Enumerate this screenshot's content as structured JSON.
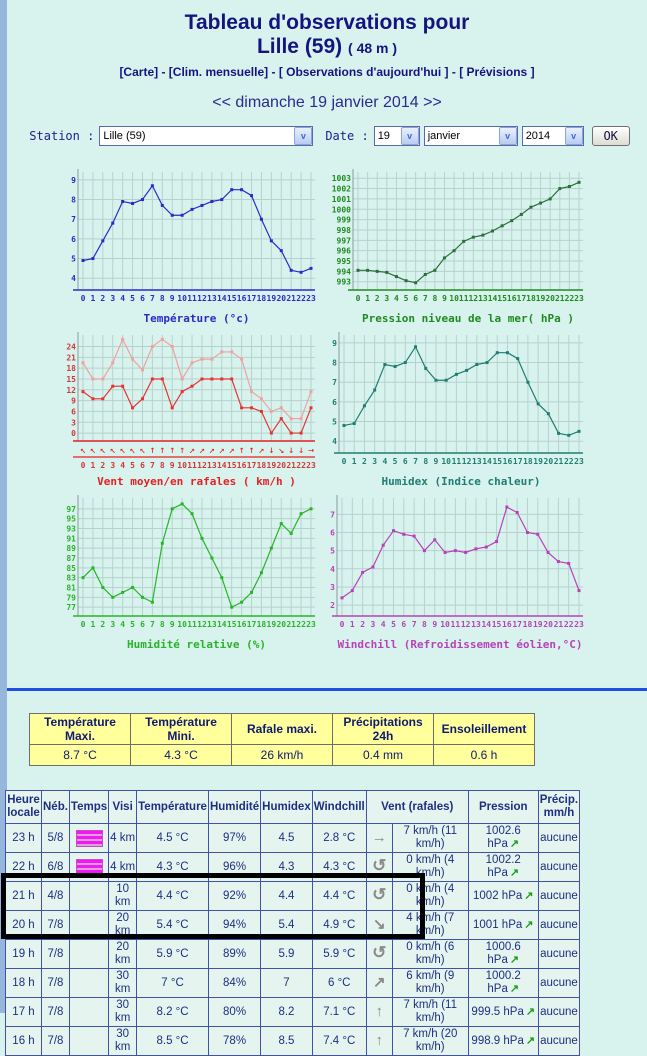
{
  "header": {
    "title_line1": "Tableau d'observations pour",
    "title_line2": "Lille (59)",
    "title_altitude": "( 48 m )",
    "links": [
      "[Carte]",
      "[Clim. mensuelle]",
      "[ Observations d'aujourd'hui ]",
      "[ Prévisions ]"
    ],
    "link_separator": " - ",
    "date_prev": "<<",
    "date_label": "dimanche 19 janvier 2014",
    "date_next": ">>"
  },
  "form": {
    "station_label": "Station :",
    "station_value": "Lille (59)",
    "date_label": "Date :",
    "day_value": "19",
    "month_value": "janvier",
    "year_value": "2014",
    "ok_label": "OK",
    "select_arrow": "v"
  },
  "colors": {
    "page_bg": "#d8f3ee",
    "grid": "#b6d2cd",
    "axis_gray": "#8899a0",
    "divider_blue": "#1e4fe0",
    "summary_bg": "#ffff9c",
    "table_border": "#4052a8",
    "table_text": "#1c2f80",
    "trend_green": "#18a018",
    "mist_magenta": "#f714f7"
  },
  "chart_data": [
    {
      "key": "temperature",
      "type": "line",
      "title": "Température (°c)",
      "color": "#2a2ac8",
      "margin": 20,
      "ymin": 3.4,
      "ymax": 9.4,
      "yticks": [
        4,
        5,
        6,
        7,
        8,
        9
      ],
      "x": [
        0,
        1,
        2,
        3,
        4,
        5,
        6,
        7,
        8,
        9,
        10,
        11,
        12,
        13,
        14,
        15,
        16,
        17,
        18,
        19,
        20,
        21,
        22,
        23
      ],
      "values": [
        4.9,
        5.0,
        5.9,
        6.8,
        7.9,
        7.8,
        8.0,
        8.7,
        7.7,
        7.2,
        7.2,
        7.5,
        7.7,
        7.9,
        8.0,
        8.5,
        8.5,
        8.2,
        7.0,
        5.9,
        5.4,
        4.4,
        4.3,
        4.5
      ]
    },
    {
      "key": "pression",
      "type": "line",
      "title": "Pression niveau de la mer( hPa )",
      "color": "#1f8a1f",
      "line_color": "#2d6e3c",
      "margin": 27,
      "ymin": 992.2,
      "ymax": 1003.6,
      "yticks": [
        993,
        994,
        995,
        996,
        997,
        998,
        999,
        1000,
        1001,
        1002,
        1003
      ],
      "x": [
        0,
        1,
        2,
        3,
        4,
        5,
        6,
        7,
        8,
        9,
        10,
        11,
        12,
        13,
        14,
        15,
        16,
        17,
        18,
        19,
        20,
        21,
        22,
        23
      ],
      "values": [
        994.1,
        994.1,
        994.0,
        993.9,
        993.5,
        993.1,
        992.9,
        993.7,
        994.1,
        995.3,
        996.0,
        996.9,
        997.3,
        997.5,
        997.9,
        998.4,
        998.9,
        999.5,
        1000.2,
        1000.6,
        1001.0,
        1002.0,
        1002.2,
        1002.6
      ]
    },
    {
      "key": "vent",
      "type": "line",
      "title": "Vent moyen/en rafales ( km/h )",
      "color": "#e62020",
      "tick_color": "#d03838",
      "margin": 20,
      "ymin": -2.2,
      "ymax": 27.2,
      "yticks": [
        0,
        3,
        6,
        9,
        12,
        15,
        18,
        21,
        24
      ],
      "x": [
        0,
        1,
        2,
        3,
        4,
        5,
        6,
        7,
        8,
        9,
        10,
        11,
        12,
        13,
        14,
        15,
        16,
        17,
        18,
        19,
        20,
        21,
        22,
        23
      ],
      "series": [
        {
          "name": "rafales",
          "color": "#f2a0a0",
          "values": [
            19.5,
            15,
            15,
            19.5,
            26,
            20.5,
            17.5,
            24,
            26,
            24,
            15,
            19.5,
            20.5,
            20.5,
            22.5,
            22.5,
            20.5,
            11.5,
            9.5,
            6,
            7,
            4,
            4,
            11.5
          ]
        },
        {
          "name": "vent moyen",
          "color": "#e63232",
          "values": [
            11.5,
            9.5,
            9.5,
            13,
            13,
            7,
            9.5,
            15,
            15,
            7,
            11.5,
            13,
            15,
            15,
            15,
            15,
            7,
            7,
            6,
            0,
            4,
            0,
            0,
            7
          ]
        }
      ],
      "arrows": [
        "↖",
        "↖",
        "↖",
        "↖",
        "↖",
        "↖",
        "↖",
        "↑",
        "↑",
        "↑",
        "↑",
        "↗",
        "↗",
        "↗",
        "↗",
        "↗",
        "↑",
        "↑",
        "↗",
        "↓",
        "↘",
        "↓",
        "↓",
        "→"
      ]
    },
    {
      "key": "humidex",
      "type": "line",
      "title": "Humidex (Indice chaleur)",
      "color": "#1f7d72",
      "margin": 13,
      "ymin": 3.4,
      "ymax": 9.4,
      "yticks": [
        4,
        5,
        6,
        7,
        8,
        9
      ],
      "x": [
        0,
        1,
        2,
        3,
        4,
        5,
        6,
        7,
        8,
        9,
        10,
        11,
        12,
        13,
        14,
        15,
        16,
        17,
        18,
        19,
        20,
        21,
        22,
        23
      ],
      "values": [
        4.8,
        4.9,
        5.8,
        6.6,
        7.9,
        7.8,
        8.0,
        8.8,
        7.7,
        7.1,
        7.1,
        7.4,
        7.6,
        7.9,
        8.0,
        8.5,
        8.5,
        8.2,
        7.0,
        5.9,
        5.4,
        4.4,
        4.3,
        4.5
      ]
    },
    {
      "key": "humidite",
      "type": "line",
      "title": "Humidité relative (%)",
      "color": "#28b428",
      "margin": 20,
      "ymin": 75.2,
      "ymax": 99.2,
      "yticks": [
        77,
        79,
        81,
        83,
        85,
        87,
        89,
        91,
        93,
        95,
        97
      ],
      "x": [
        0,
        1,
        2,
        3,
        4,
        5,
        6,
        7,
        8,
        9,
        10,
        11,
        12,
        13,
        14,
        15,
        16,
        17,
        18,
        19,
        20,
        21,
        22,
        23
      ],
      "values": [
        83,
        85,
        81,
        79,
        80,
        81,
        79,
        78,
        90,
        97,
        98,
        96,
        91,
        87,
        83,
        77,
        78,
        80,
        84,
        89,
        94,
        92,
        96,
        97
      ]
    },
    {
      "key": "windchill",
      "type": "line",
      "title": "Windchill (Refroidissement éolien,°C)",
      "color": "#b841b8",
      "margin": 11,
      "ymin": 1.4,
      "ymax": 7.9,
      "yticks": [
        2,
        3,
        4,
        5,
        6,
        7
      ],
      "x": [
        0,
        1,
        2,
        3,
        4,
        5,
        6,
        7,
        8,
        9,
        10,
        11,
        12,
        13,
        14,
        15,
        16,
        17,
        18,
        19,
        20,
        21,
        22,
        23
      ],
      "values": [
        2.4,
        2.8,
        3.8,
        4.1,
        5.3,
        6.1,
        5.9,
        5.8,
        5.0,
        5.6,
        4.9,
        5.0,
        4.9,
        5.1,
        5.2,
        5.5,
        7.4,
        7.1,
        6.0,
        5.9,
        4.9,
        4.4,
        4.3,
        2.8
      ]
    }
  ],
  "summary": {
    "columns": [
      {
        "label": "Température Maxi.",
        "value": "8.7 °C"
      },
      {
        "label": "Température Mini.",
        "value": "4.3 °C"
      },
      {
        "label": "Rafale maxi.",
        "value": "26 km/h"
      },
      {
        "label": "Précipitations 24h",
        "value": "0.4 mm"
      },
      {
        "label": "Ensoleillement",
        "value": "0.6 h"
      }
    ]
  },
  "table": {
    "headers": [
      "Heure locale",
      "Néb.",
      "Temps",
      "Visi",
      "Température",
      "Humidité",
      "Humidex",
      "Windchill",
      "Vent (rafales)",
      "Pression",
      "Précip. mm/h"
    ],
    "rows": [
      {
        "heure": "23 h",
        "neb": "5/8",
        "temps_icon": "mist",
        "visi": "4 km",
        "temperature": "4.5 °C",
        "humidite": "97%",
        "humidex": "4.5",
        "windchill": "2.8 °C",
        "vent_dir": "arrow-right-icon",
        "vent_glyph": "→",
        "vent": "7 km/h (11 km/h)",
        "pression": "1002.6 hPa",
        "trend": "↗",
        "precip": "aucune",
        "highlight": false
      },
      {
        "heure": "22 h",
        "neb": "6/8",
        "temps_icon": "mist",
        "visi": "4 km",
        "temperature": "4.3 °C",
        "humidite": "96%",
        "humidex": "4.3",
        "windchill": "4.3 °C",
        "vent_dir": "wind-variable-icon",
        "vent_glyph": "↺",
        "vent": "0 km/h (4 km/h)",
        "pression": "1002.2 hPa",
        "trend": "↗",
        "precip": "aucune",
        "highlight": false
      },
      {
        "heure": "21 h",
        "neb": "4/8",
        "temps_icon": "",
        "visi": "10 km",
        "temperature": "4.4 °C",
        "humidite": "92%",
        "humidex": "4.4",
        "windchill": "4.4 °C",
        "vent_dir": "wind-variable-icon",
        "vent_glyph": "↺",
        "vent": "0 km/h (4 km/h)",
        "pression": "1002 hPa",
        "trend": "↗",
        "precip": "aucune",
        "highlight": true
      },
      {
        "heure": "20 h",
        "neb": "7/8",
        "temps_icon": "",
        "visi": "20 km",
        "temperature": "5.4 °C",
        "humidite": "94%",
        "humidex": "5.4",
        "windchill": "4.9 °C",
        "vent_dir": "arrow-downright-icon",
        "vent_glyph": "↘",
        "vent": "4 km/h (7 km/h)",
        "pression": "1001 hPa",
        "trend": "↗",
        "precip": "aucune",
        "highlight": true
      },
      {
        "heure": "19 h",
        "neb": "7/8",
        "temps_icon": "",
        "visi": "20 km",
        "temperature": "5.9 °C",
        "humidite": "89%",
        "humidex": "5.9",
        "windchill": "5.9 °C",
        "vent_dir": "wind-variable-icon",
        "vent_glyph": "↺",
        "vent": "0 km/h (6 km/h)",
        "pression": "1000.6 hPa",
        "trend": "↗",
        "precip": "aucune",
        "highlight": false
      },
      {
        "heure": "18 h",
        "neb": "7/8",
        "temps_icon": "",
        "visi": "30 km",
        "temperature": "7 °C",
        "humidite": "84%",
        "humidex": "7",
        "windchill": "6 °C",
        "vent_dir": "arrow-upright-icon",
        "vent_glyph": "↗",
        "vent": "6 km/h (9 km/h)",
        "pression": "1000.2 hPa",
        "trend": "↗",
        "precip": "aucune",
        "highlight": false
      },
      {
        "heure": "17 h",
        "neb": "7/8",
        "temps_icon": "",
        "visi": "30 km",
        "temperature": "8.2 °C",
        "humidite": "80%",
        "humidex": "8.2",
        "windchill": "7.1 °C",
        "vent_dir": "arrow-up-icon",
        "vent_glyph": "↑",
        "vent": "7 km/h (11 km/h)",
        "pression": "999.5 hPa",
        "trend": "↗",
        "precip": "aucune",
        "highlight": false
      },
      {
        "heure": "16 h",
        "neb": "7/8",
        "temps_icon": "",
        "visi": "30 km",
        "temperature": "8.5 °C",
        "humidite": "78%",
        "humidex": "8.5",
        "windchill": "7.4 °C",
        "vent_dir": "arrow-up-icon",
        "vent_glyph": "↑",
        "vent": "7 km/h (20 km/h)",
        "pression": "998.9 hPa",
        "trend": "↗",
        "precip": "aucune",
        "highlight": false
      }
    ]
  }
}
